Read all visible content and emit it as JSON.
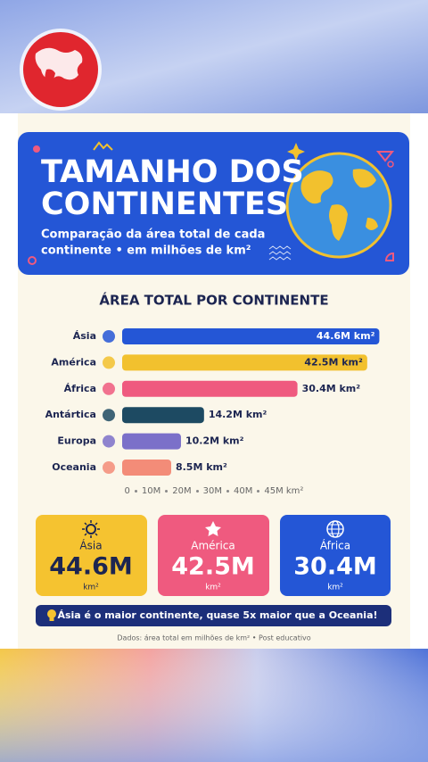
{
  "header": {
    "title_lines": [
      "TAMANHO DOS",
      "CONTINENTES"
    ],
    "subtitle_lines": [
      "Comparação da área total de cada",
      "continente • em milhões de km²"
    ]
  },
  "chart_data": {
    "type": "bar",
    "orientation": "horizontal",
    "title": "ÁREA TOTAL POR CONTINENTE",
    "categories": [
      "Ásia",
      "América",
      "África",
      "Antártica",
      "Europa",
      "Oceania"
    ],
    "values": [
      44.6,
      42.5,
      30.4,
      14.2,
      10.2,
      8.5
    ],
    "value_labels": [
      "44.6M km²",
      "42.5M km²",
      "30.4M km²",
      "14.2M km²",
      "10.2M km²",
      "8.5M km²"
    ],
    "colors": [
      "#2456d6",
      "#f2c12e",
      "#ef5a7f",
      "#1d4a62",
      "#7b70c9",
      "#f38c78"
    ],
    "xlim": [
      0,
      45
    ],
    "xticks": [
      0,
      {
        "value": 10,
        "label": "10M"
      },
      {
        "value": 20,
        "label": "20M"
      },
      {
        "value": 30,
        "label": "30M"
      },
      {
        "value": 40,
        "label": "40M"
      },
      {
        "value": 45,
        "label": "45M km²"
      }
    ]
  },
  "highlights": [
    {
      "name": "Ásia",
      "value": "44.6M",
      "unit": "km²"
    },
    {
      "name": "América",
      "value": "42.5M",
      "unit": "km²"
    },
    {
      "name": "África",
      "value": "30.4M",
      "unit": "km²"
    }
  ],
  "banner": "Ásia é o maior continente, quase 5x maior que a Oceania!",
  "footer": "Dados: área total em milhões de km² • Post educativo"
}
